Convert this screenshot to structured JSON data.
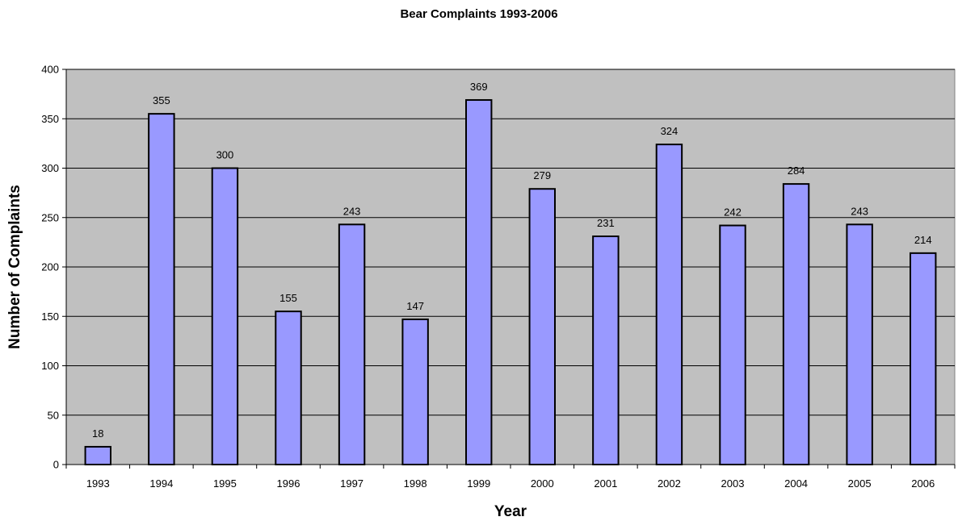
{
  "chart_data": {
    "type": "bar",
    "title": "Bear Complaints 1993-2006",
    "xlabel": "Year",
    "ylabel": "Number of Complaints",
    "categories": [
      "1993",
      "1994",
      "1995",
      "1996",
      "1997",
      "1998",
      "1999",
      "2000",
      "2001",
      "2002",
      "2003",
      "2004",
      "2005",
      "2006"
    ],
    "values": [
      18,
      355,
      300,
      155,
      243,
      147,
      369,
      279,
      231,
      324,
      242,
      284,
      243,
      214
    ],
    "ylim": [
      0,
      400
    ],
    "yticks": [
      0,
      50,
      100,
      150,
      200,
      250,
      300,
      350,
      400
    ],
    "grid": true,
    "legend": "none",
    "data_labels": true,
    "colors": {
      "bar_fill": "#9999ff",
      "bar_stroke": "#000000",
      "plot_background": "#c0c0c0",
      "gridline": "#000000",
      "plot_border": "#808080"
    }
  }
}
